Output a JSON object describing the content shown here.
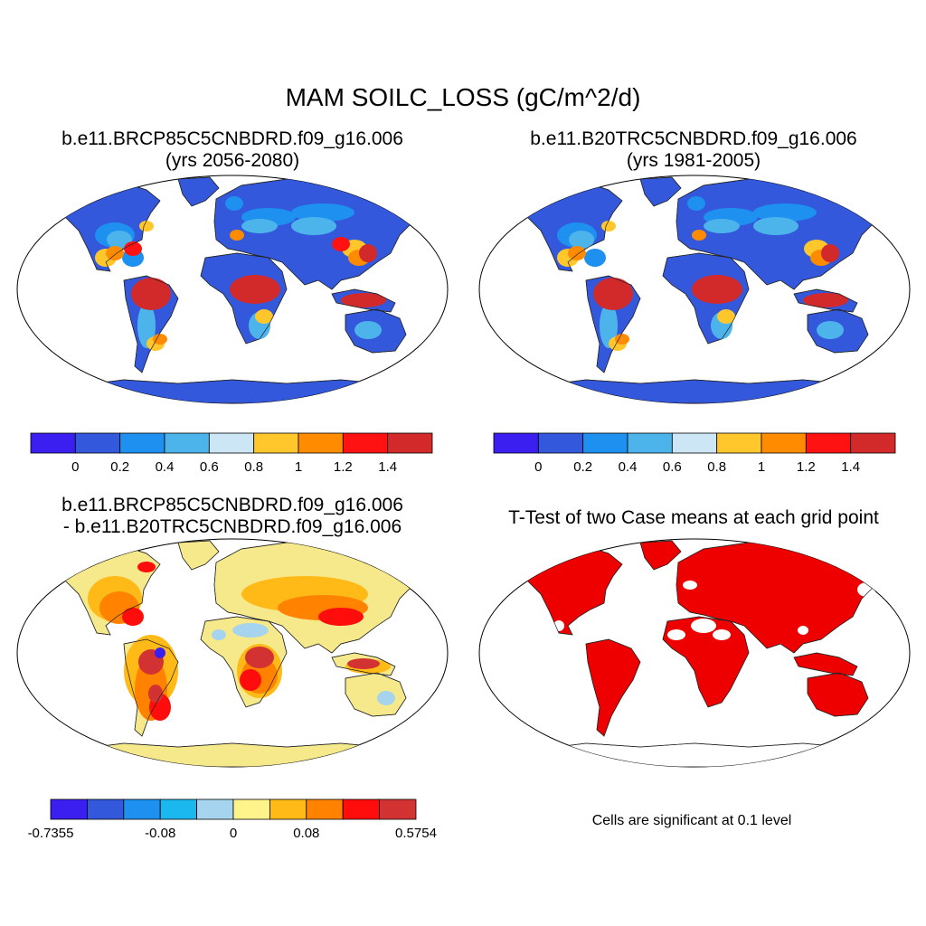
{
  "main_title": "MAM SOILC_LOSS (gC/m^2/d)",
  "panels": [
    {
      "title_line1": "b.e11.BRCP85C5CNBDRD.f09_g16.006",
      "title_line2": "(yrs 2056-2080)"
    },
    {
      "title_line1": "b.e11.B20TRC5CNBDRD.f09_g16.006",
      "title_line2": "(yrs 1981-2005)"
    },
    {
      "title_line1": "b.e11.BRCP85C5CNBDRD.f09_g16.006",
      "title_line2": "- b.e11.B20TRC5CNBDRD.f09_g16.006"
    },
    {
      "title_line1": "T-Test of two Case means at each grid point",
      "title_line2": ""
    }
  ],
  "colorbars": {
    "absolute": {
      "colors": [
        "#3b1ff0",
        "#3358dc",
        "#1e90f0",
        "#4cb4ea",
        "#cde6f5",
        "#ffc72c",
        "#ff8c00",
        "#ff1212",
        "#d22a2a"
      ],
      "labels": [
        "0",
        "0.2",
        "0.4",
        "0.6",
        "0.8",
        "1",
        "1.2",
        "1.4"
      ]
    },
    "difference": {
      "colors": [
        "#3b1ff0",
        "#3358dc",
        "#1e90f0",
        "#1ab8ef",
        "#a6d4ee",
        "#fff38c",
        "#ffba18",
        "#ff8200",
        "#ff0c0c",
        "#d23232"
      ],
      "labels": [
        "-0.7355",
        "-0.08",
        "0",
        "0.08",
        "0.5754"
      ]
    }
  },
  "significance_note": "Cells are significant at 0.1 level",
  "colors": {
    "land_base": "#3358dc",
    "significant": "#ee0000",
    "diff_base": "#f6e98c",
    "ocean": "#ffffff"
  }
}
